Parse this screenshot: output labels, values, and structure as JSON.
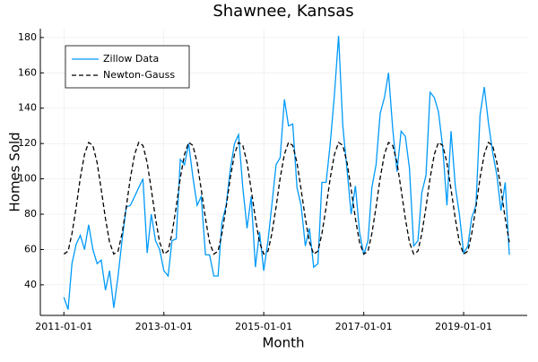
{
  "chart_data": {
    "type": "line",
    "title": "Shawnee, Kansas",
    "x_label": "Month",
    "y_label": "Homes Sold",
    "x": [
      "2011-01-01",
      "2011-02-01",
      "2011-03-01",
      "2011-04-01",
      "2011-05-01",
      "2011-06-01",
      "2011-07-01",
      "2011-08-01",
      "2011-09-01",
      "2011-10-01",
      "2011-11-01",
      "2011-12-01",
      "2012-01-01",
      "2012-02-01",
      "2012-03-01",
      "2012-04-01",
      "2012-05-01",
      "2012-06-01",
      "2012-07-01",
      "2012-08-01",
      "2012-09-01",
      "2012-10-01",
      "2012-11-01",
      "2012-12-01",
      "2013-01-01",
      "2013-02-01",
      "2013-03-01",
      "2013-04-01",
      "2013-05-01",
      "2013-06-01",
      "2013-07-01",
      "2013-08-01",
      "2013-09-01",
      "2013-10-01",
      "2013-11-01",
      "2013-12-01",
      "2014-01-01",
      "2014-02-01",
      "2014-03-01",
      "2014-04-01",
      "2014-05-01",
      "2014-06-01",
      "2014-07-01",
      "2014-08-01",
      "2014-09-01",
      "2014-10-01",
      "2014-11-01",
      "2014-12-01",
      "2015-01-01",
      "2015-02-01",
      "2015-03-01",
      "2015-04-01",
      "2015-05-01",
      "2015-06-01",
      "2015-07-01",
      "2015-08-01",
      "2015-09-01",
      "2015-10-01",
      "2015-11-01",
      "2015-12-01",
      "2016-01-01",
      "2016-02-01",
      "2016-03-01",
      "2016-04-01",
      "2016-05-01",
      "2016-06-01",
      "2016-07-01",
      "2016-08-01",
      "2016-09-01",
      "2016-10-01",
      "2016-11-01",
      "2016-12-01",
      "2017-01-01",
      "2017-02-01",
      "2017-03-01",
      "2017-04-01",
      "2017-05-01",
      "2017-06-01",
      "2017-07-01",
      "2017-08-01",
      "2017-09-01",
      "2017-10-01",
      "2017-11-01",
      "2017-12-01",
      "2018-01-01",
      "2018-02-01",
      "2018-03-01",
      "2018-04-01",
      "2018-05-01",
      "2018-06-01",
      "2018-07-01",
      "2018-08-01",
      "2018-09-01",
      "2018-10-01",
      "2018-11-01",
      "2018-12-01",
      "2019-01-01",
      "2019-02-01",
      "2019-03-01",
      "2019-04-01",
      "2019-05-01",
      "2019-06-01",
      "2019-07-01",
      "2019-08-01",
      "2019-09-01",
      "2019-10-01",
      "2019-11-01",
      "2019-12-01"
    ],
    "series": [
      {
        "name": "Zillow Data",
        "color": "#009af9",
        "dash": false,
        "values": [
          33,
          26,
          52,
          63,
          68,
          60,
          74,
          60,
          52,
          54,
          37,
          48,
          27,
          45,
          65,
          84,
          85,
          90,
          95,
          100,
          58,
          80,
          65,
          60,
          48,
          45,
          65,
          66,
          111,
          108,
          120,
          101,
          85,
          90,
          57,
          57,
          45,
          45,
          75,
          85,
          105,
          120,
          125,
          95,
          72,
          90,
          50,
          70,
          48,
          65,
          85,
          108,
          112,
          145,
          130,
          131,
          95,
          85,
          62,
          72,
          50,
          52,
          98,
          98,
          120,
          148,
          181,
          130,
          105,
          80,
          96,
          70,
          57,
          65,
          95,
          108,
          137,
          146,
          160,
          128,
          104,
          127,
          124,
          106,
          62,
          65,
          92,
          102,
          149,
          146,
          138,
          118,
          85,
          127,
          96,
          80,
          58,
          62,
          78,
          85,
          136,
          152,
          132,
          115,
          102,
          82,
          98,
          57
        ]
      },
      {
        "name": "Newton-Gauss",
        "color": "#000000",
        "dash": true,
        "values": [
          57.4,
          59.1,
          68.9,
          84.0,
          100.5,
          113.9,
          120.6,
          118.9,
          109.1,
          94.0,
          77.5,
          64.1,
          57.4,
          59.1,
          68.9,
          84.0,
          100.5,
          113.9,
          120.6,
          118.9,
          109.1,
          94.0,
          77.5,
          64.1,
          57.4,
          59.1,
          68.9,
          84.0,
          100.5,
          113.9,
          120.6,
          118.9,
          109.1,
          94.0,
          77.5,
          64.1,
          57.4,
          59.1,
          68.9,
          84.0,
          100.5,
          113.9,
          120.6,
          118.9,
          109.1,
          94.0,
          77.5,
          64.1,
          57.4,
          59.1,
          68.9,
          84.0,
          100.5,
          113.9,
          120.6,
          118.9,
          109.1,
          94.0,
          77.5,
          64.1,
          57.4,
          59.1,
          68.9,
          84.0,
          100.5,
          113.9,
          120.6,
          118.9,
          109.1,
          94.0,
          77.5,
          64.1,
          57.4,
          59.1,
          68.9,
          84.0,
          100.5,
          113.9,
          120.6,
          118.9,
          109.1,
          94.0,
          77.5,
          64.1,
          57.4,
          59.1,
          68.9,
          84.0,
          100.5,
          113.9,
          120.6,
          118.9,
          109.1,
          94.0,
          77.5,
          64.1,
          57.4,
          59.1,
          68.9,
          84.0,
          100.5,
          113.9,
          120.6,
          118.9,
          109.1,
          94.0,
          77.5,
          64.1
        ]
      }
    ],
    "xlim": [
      "2010-07-13",
      "2020-04-10"
    ],
    "xticks": [
      "2011-01-01",
      "2013-01-01",
      "2015-01-01",
      "2017-01-01",
      "2019-01-01"
    ],
    "ylim": [
      22.7,
      185
    ],
    "yticks": [
      40,
      60,
      80,
      100,
      120,
      140,
      160,
      180
    ],
    "grid": true,
    "legend": "upper left"
  }
}
